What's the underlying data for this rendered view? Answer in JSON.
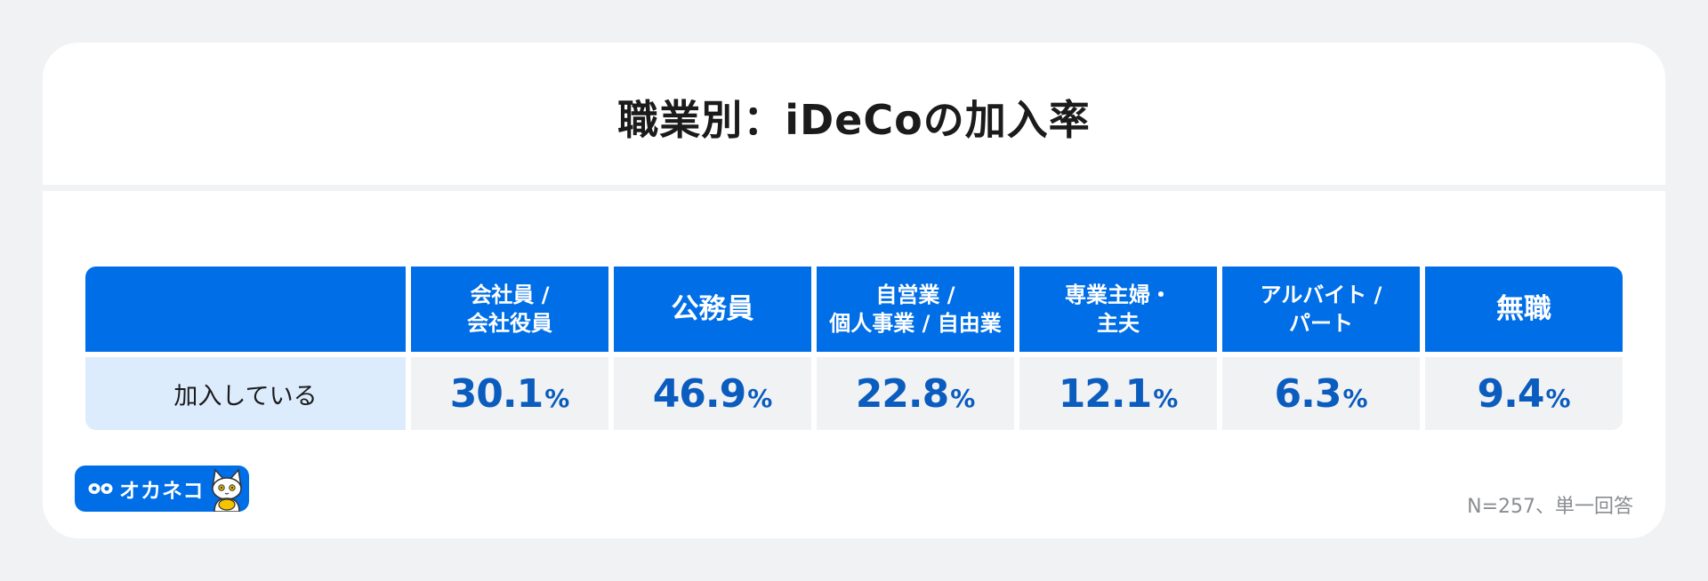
{
  "title": "職業別：iDeCoの加入率",
  "row_label": "加入している",
  "unit": "%",
  "logo_text": "オカネコ",
  "note": "N=257、単一回答",
  "colors": {
    "header_bg": "#006ee6",
    "value_text": "#0a5cbf",
    "row_label_bg": "#dcecfd",
    "cell_bg": "#f1f2f4"
  },
  "chart_data": {
    "type": "table",
    "title": "職業別：iDeCoの加入率",
    "categories": [
      "会社員 /\n会社役員",
      "公務員",
      "自営業 /\n個人事業 / 自由業",
      "専業主婦・\n主夫",
      "アルバイト /\nパート",
      "無職"
    ],
    "series": [
      {
        "name": "加入している",
        "values": [
          "30.1",
          "46.9",
          "22.8",
          "12.1",
          "6.3",
          "9.4"
        ]
      }
    ]
  }
}
